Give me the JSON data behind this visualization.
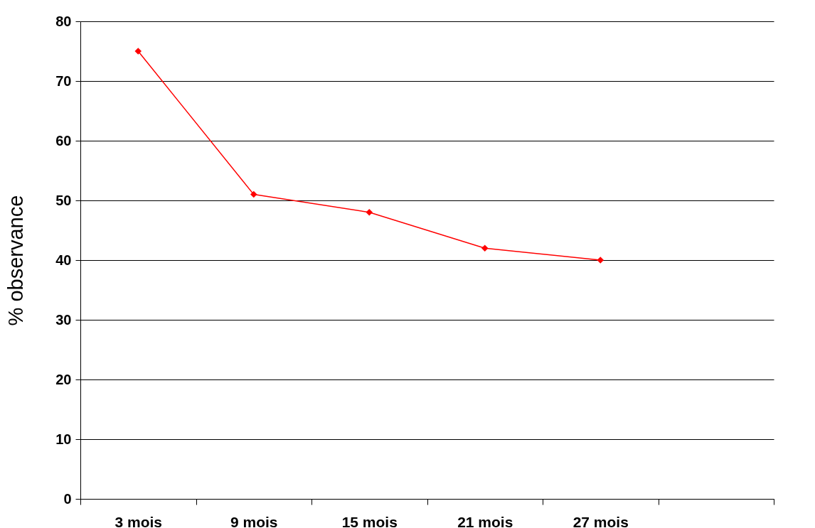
{
  "chart_data": {
    "type": "line",
    "ylabel": "% observance",
    "categories": [
      "3 mois",
      "9 mois",
      "15 mois",
      "21 mois",
      "27 mois",
      null
    ],
    "series": [
      {
        "color": "#ff0000",
        "values": [
          75,
          51,
          48,
          42,
          40,
          null
        ]
      }
    ],
    "ylim": [
      0,
      80
    ],
    "yticks": [
      0,
      10,
      20,
      30,
      40,
      50,
      60,
      70,
      80
    ],
    "grid": "y",
    "marker": "diamond",
    "line_style": "solid",
    "legend": false
  }
}
